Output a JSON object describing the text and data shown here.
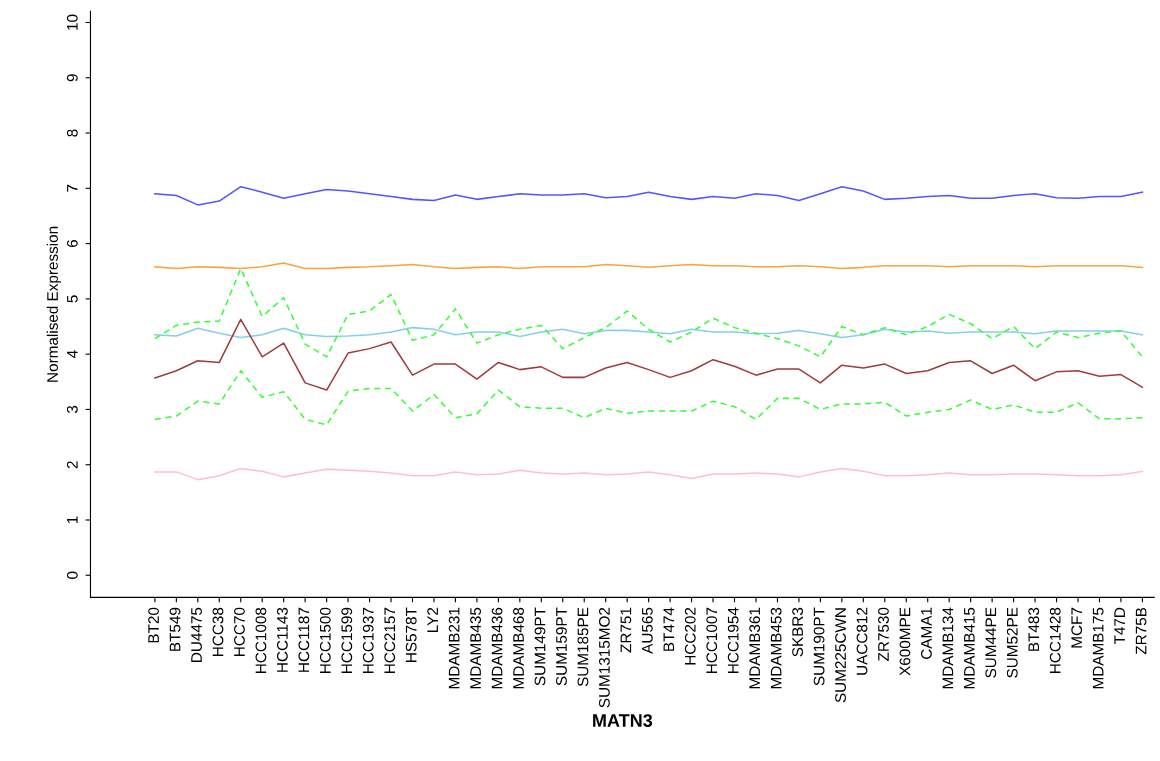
{
  "chart_data": {
    "type": "line",
    "xlabel": "MATN3",
    "ylabel": "Normalised Expression",
    "categories": [
      "BT20",
      "BT549",
      "DU4475",
      "HCC38",
      "HCC70",
      "HCC1008",
      "HCC1143",
      "HCC1187",
      "HCC1500",
      "HCC1599",
      "HCC1937",
      "HCC2157",
      "HS578T",
      "LY2",
      "MDAMB231",
      "MDAMB435",
      "MDAMB436",
      "MDAMB468",
      "SUM149PT",
      "SUM159PT",
      "SUM185PE",
      "SUM1315MO2",
      "ZR751",
      "AU565",
      "BT474",
      "HCC202",
      "HCC1007",
      "HCC1954",
      "MDAMB361",
      "MDAMB453",
      "SKBR3",
      "SUM190PT",
      "SUM225CWN",
      "UACC812",
      "ZR7530",
      "X600MPE",
      "CAMA1",
      "MDAMB134",
      "MDAMB415",
      "SUM44PE",
      "SUM52PE",
      "BT483",
      "HCC1428",
      "MCF7",
      "MDAMB175",
      "T47D",
      "ZR75B"
    ],
    "ylim": [
      -0.4,
      10.2
    ],
    "yticks": [
      0,
      1,
      2,
      3,
      4,
      5,
      6,
      7,
      8,
      9,
      10
    ],
    "grid": false,
    "legend": false,
    "marker": "none",
    "series": [
      {
        "color": "#5555ff",
        "line_style": "solid",
        "values": [
          6.9,
          6.87,
          6.7,
          6.77,
          7.03,
          6.93,
          6.82,
          6.9,
          6.98,
          6.95,
          6.9,
          6.85,
          6.8,
          6.78,
          6.88,
          6.8,
          6.85,
          6.9,
          6.88,
          6.88,
          6.9,
          6.83,
          6.85,
          6.93,
          6.85,
          6.8,
          6.85,
          6.82,
          6.9,
          6.87,
          6.78,
          6.9,
          7.03,
          6.95,
          6.8,
          6.82,
          6.85,
          6.87,
          6.82,
          6.82,
          6.87,
          6.9,
          6.83,
          6.82,
          6.85,
          6.85,
          6.93
        ]
      },
      {
        "color": "#ffa040",
        "line_style": "solid",
        "values": [
          5.58,
          5.55,
          5.58,
          5.57,
          5.55,
          5.58,
          5.65,
          5.55,
          5.55,
          5.57,
          5.58,
          5.6,
          5.62,
          5.58,
          5.55,
          5.57,
          5.58,
          5.55,
          5.58,
          5.58,
          5.58,
          5.62,
          5.6,
          5.57,
          5.6,
          5.62,
          5.6,
          5.6,
          5.58,
          5.58,
          5.6,
          5.58,
          5.55,
          5.57,
          5.6,
          5.6,
          5.6,
          5.58,
          5.6,
          5.6,
          5.6,
          5.58,
          5.6,
          5.6,
          5.6,
          5.6,
          5.57
        ]
      },
      {
        "color": "#87ceeb",
        "line_style": "solid",
        "values": [
          4.35,
          4.33,
          4.47,
          4.38,
          4.3,
          4.35,
          4.47,
          4.35,
          4.32,
          4.33,
          4.35,
          4.4,
          4.48,
          4.45,
          4.35,
          4.4,
          4.4,
          4.32,
          4.4,
          4.45,
          4.37,
          4.43,
          4.43,
          4.4,
          4.37,
          4.45,
          4.4,
          4.4,
          4.37,
          4.38,
          4.43,
          4.37,
          4.3,
          4.35,
          4.45,
          4.4,
          4.42,
          4.38,
          4.4,
          4.4,
          4.4,
          4.37,
          4.42,
          4.42,
          4.42,
          4.42,
          4.35
        ]
      },
      {
        "color": "#33ff33",
        "line_style": "dashed",
        "values": [
          4.28,
          4.52,
          4.58,
          4.6,
          5.55,
          4.68,
          5.02,
          4.18,
          3.95,
          4.72,
          4.78,
          5.08,
          4.25,
          4.35,
          4.82,
          4.2,
          4.35,
          4.45,
          4.52,
          4.1,
          4.3,
          4.48,
          4.78,
          4.45,
          4.22,
          4.4,
          4.65,
          4.48,
          4.38,
          4.28,
          4.15,
          3.95,
          4.5,
          4.35,
          4.48,
          4.35,
          4.5,
          4.72,
          4.55,
          4.28,
          4.5,
          4.1,
          4.4,
          4.3,
          4.38,
          4.42,
          3.95
        ]
      },
      {
        "color": "#a03c3c",
        "line_style": "solid",
        "values": [
          3.57,
          3.7,
          3.88,
          3.85,
          4.63,
          3.95,
          4.2,
          3.48,
          3.35,
          4.02,
          4.1,
          4.22,
          3.62,
          3.82,
          3.82,
          3.55,
          3.85,
          3.72,
          3.77,
          3.58,
          3.58,
          3.75,
          3.85,
          3.72,
          3.58,
          3.7,
          3.9,
          3.78,
          3.62,
          3.73,
          3.73,
          3.48,
          3.8,
          3.75,
          3.82,
          3.65,
          3.7,
          3.85,
          3.88,
          3.65,
          3.8,
          3.52,
          3.68,
          3.7,
          3.6,
          3.63,
          3.4
        ]
      },
      {
        "color": "#33ff33",
        "line_style": "dashed",
        "values": [
          2.82,
          2.88,
          3.15,
          3.1,
          3.7,
          3.22,
          3.32,
          2.82,
          2.72,
          3.33,
          3.38,
          3.38,
          2.97,
          3.27,
          2.85,
          2.92,
          3.35,
          3.05,
          3.02,
          3.02,
          2.85,
          3.02,
          2.93,
          2.97,
          2.97,
          2.97,
          3.15,
          3.05,
          2.82,
          3.2,
          3.2,
          3.0,
          3.1,
          3.1,
          3.13,
          2.88,
          2.95,
          3.0,
          3.17,
          3.0,
          3.08,
          2.95,
          2.95,
          3.12,
          2.83,
          2.83,
          2.85
        ]
      },
      {
        "color": "#ffc0cb",
        "line_style": "solid",
        "values": [
          1.87,
          1.87,
          1.73,
          1.8,
          1.93,
          1.88,
          1.78,
          1.85,
          1.92,
          1.9,
          1.88,
          1.85,
          1.8,
          1.8,
          1.87,
          1.82,
          1.83,
          1.9,
          1.85,
          1.83,
          1.85,
          1.82,
          1.83,
          1.87,
          1.82,
          1.75,
          1.83,
          1.83,
          1.85,
          1.83,
          1.78,
          1.87,
          1.93,
          1.88,
          1.8,
          1.8,
          1.82,
          1.85,
          1.82,
          1.82,
          1.83,
          1.83,
          1.82,
          1.8,
          1.8,
          1.82,
          1.88
        ]
      }
    ]
  }
}
